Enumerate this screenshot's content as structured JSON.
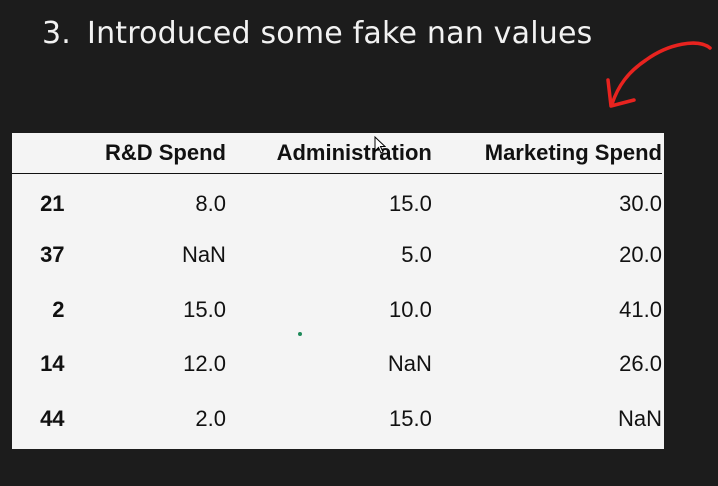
{
  "slide": {
    "number": "3.",
    "title": "Introduced some fake nan values"
  },
  "table": {
    "columns": [
      "",
      "R&D Spend",
      "Administration",
      "Marketing Spend"
    ],
    "rows": [
      {
        "index": "21",
        "rd": "8.0",
        "admin": "15.0",
        "marketing": "30.0"
      },
      {
        "index": "37",
        "rd": "NaN",
        "admin": "5.0",
        "marketing": "20.0"
      },
      {
        "index": "2",
        "rd": "15.0",
        "admin": "10.0",
        "marketing": "41.0"
      },
      {
        "index": "14",
        "rd": "12.0",
        "admin": "NaN",
        "marketing": "26.0"
      },
      {
        "index": "44",
        "rd": "2.0",
        "admin": "15.0",
        "marketing": "NaN"
      }
    ]
  },
  "annotation": {
    "icon": "red-arrow-icon",
    "color": "#e8231f"
  },
  "cursor": {
    "icon": "mouse-pointer-icon"
  }
}
